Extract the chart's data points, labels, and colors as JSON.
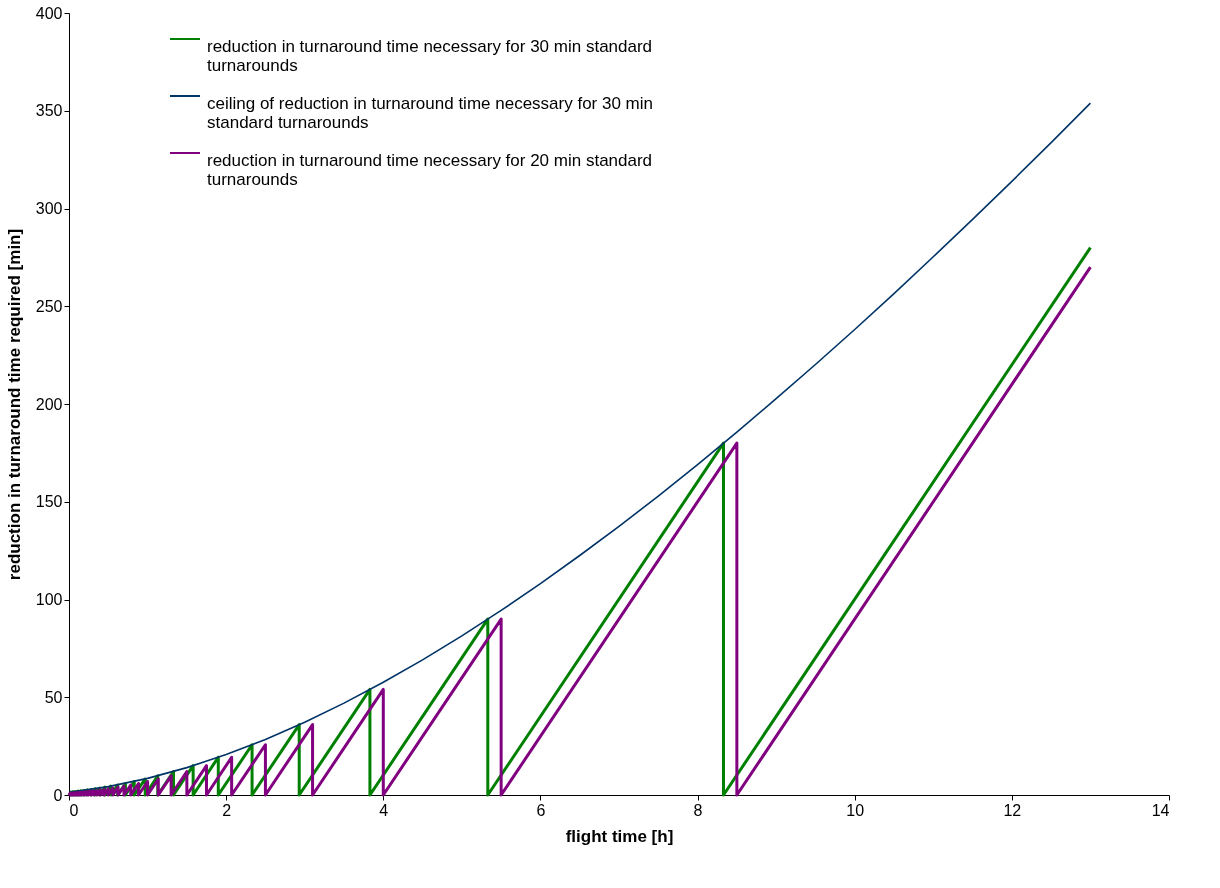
{
  "chart_data": {
    "type": "line",
    "xlabel": "flight time [h]",
    "ylabel": "reduction in turnaround time required [min]",
    "xlim": [
      0,
      14
    ],
    "xticks": [
      0,
      2,
      4,
      6,
      8,
      10,
      12,
      14
    ],
    "ylim": [
      0,
      400
    ],
    "yticks": [
      0,
      50,
      100,
      150,
      200,
      250,
      300,
      350,
      400
    ],
    "grid": false,
    "legend": "top left",
    "marker": "none",
    "line_style": "solid",
    "series": [
      {
        "name": "reduction in turnaround time necessary for 30 min standard turnarounds",
        "color": "#008000",
        "x": [
          0,
          0.026,
          0.026,
          0.053,
          0.053,
          0.083,
          0.083,
          0.116,
          0.116,
          0.152,
          0.152,
          0.19,
          0.19,
          0.233,
          0.233,
          0.281,
          0.281,
          0.333,
          0.333,
          0.392,
          0.392,
          0.458,
          0.458,
          0.533,
          0.533,
          0.619,
          0.619,
          0.718,
          0.718,
          0.83,
          0.83,
          0.97,
          0.97,
          1.13,
          1.13,
          1.33,
          1.33,
          1.58,
          1.58,
          1.9,
          1.9,
          2.33,
          2.33,
          2.93,
          2.93,
          3.83,
          3.83,
          5.33,
          5.33,
          8.33,
          8.33,
          13
        ],
        "values": [
          0,
          1.5,
          0,
          1.7,
          0,
          1.8,
          0,
          2,
          0,
          2.1,
          0,
          2.3,
          0,
          2.6,
          0,
          2.8,
          0,
          3.2,
          0,
          3.5,
          0,
          4,
          0,
          4.5,
          0,
          5.1,
          0,
          5.9,
          0,
          6.9,
          0,
          8.2,
          0,
          9.8,
          0,
          12,
          0,
          15,
          0,
          19.3,
          0,
          25.7,
          0,
          36,
          0,
          54,
          0,
          90,
          0,
          180,
          0,
          280
        ]
      },
      {
        "name": "ceiling of reduction in turnaround time necessary for 30 min standard turnarounds",
        "color": "#003366",
        "x": [
          0,
          0.5,
          1,
          1.5,
          2,
          2.5,
          3,
          3.5,
          4,
          4.5,
          5,
          5.5,
          6,
          6.5,
          7,
          7.5,
          8,
          8.5,
          9,
          9.5,
          10,
          10.5,
          11,
          11.5,
          12,
          12.5,
          13
        ],
        "values": [
          1.4,
          4.3,
          8.5,
          14,
          20.7,
          28.4,
          37.2,
          47,
          57.7,
          69.1,
          81.4,
          94.4,
          108.1,
          122.5,
          137.4,
          152.9,
          169,
          185.6,
          202.7,
          220.2,
          238.1,
          256.5,
          275.3,
          294.4,
          313.9,
          333.7,
          353.9
        ]
      },
      {
        "name": "reduction in turnaround time necessary for 20 min standard turnarounds",
        "color": "#800080",
        "x": [
          0,
          0.014,
          0.014,
          0.029,
          0.029,
          0.045,
          0.045,
          0.063,
          0.063,
          0.081,
          0.081,
          0.1,
          0.1,
          0.121,
          0.121,
          0.143,
          0.143,
          0.167,
          0.167,
          0.192,
          0.192,
          0.22,
          0.22,
          0.25,
          0.25,
          0.283,
          0.283,
          0.318,
          0.318,
          0.357,
          0.357,
          0.4,
          0.4,
          0.447,
          0.447,
          0.5,
          0.5,
          0.559,
          0.559,
          0.625,
          0.625,
          0.7,
          0.7,
          0.786,
          0.786,
          0.885,
          0.885,
          1,
          1,
          1.136,
          1.136,
          1.3,
          1.3,
          1.5,
          1.5,
          1.75,
          1.75,
          2.07,
          2.07,
          2.5,
          2.5,
          3.1,
          3.1,
          4,
          4,
          5.5,
          5.5,
          8.5,
          8.5,
          13
        ],
        "values": [
          0,
          0.9,
          0,
          0.9,
          0,
          1,
          0,
          1,
          0,
          1.1,
          0,
          1.2,
          0,
          1.2,
          0,
          1.3,
          0,
          1.4,
          0,
          1.5,
          0,
          1.7,
          0,
          1.8,
          0,
          2,
          0,
          2.1,
          0,
          2.3,
          0,
          2.6,
          0,
          2.8,
          0,
          3.2,
          0,
          3.5,
          0,
          4,
          0,
          4.5,
          0,
          5.1,
          0,
          5.9,
          0,
          6.9,
          0,
          8.2,
          0,
          9.8,
          0,
          12,
          0,
          15,
          0,
          19.3,
          0,
          25.7,
          0,
          36,
          0,
          54,
          0,
          90,
          0,
          180,
          0,
          270
        ]
      }
    ]
  }
}
